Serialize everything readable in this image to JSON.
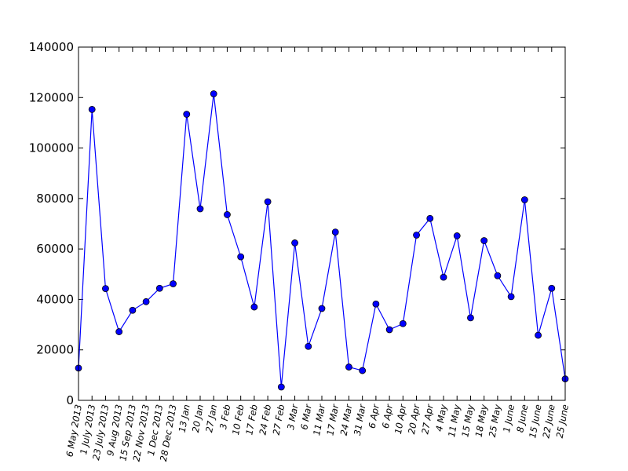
{
  "colors": {
    "series": "#0000ff",
    "axis": "#000000",
    "background": "#ffffff"
  },
  "chart_data": {
    "type": "line",
    "title": "",
    "xlabel": "",
    "ylabel": "",
    "grid": false,
    "legend": false,
    "ylim": [
      0,
      140000
    ],
    "yticks": [
      0,
      20000,
      40000,
      60000,
      80000,
      100000,
      120000,
      140000
    ],
    "categories": [
      "6 May 2013",
      "1 July 2013",
      "23 July 2013",
      "9 Aug 2013",
      "15 Sep 2013",
      "22 Nov 2013",
      "1 Dec 2013",
      "28 Dec 2013",
      "13 Jan",
      "20 Jan",
      "27 Jan",
      "3 Feb",
      "10 Feb",
      "17 Feb",
      "24 Feb",
      "27 Feb",
      "3 Mar",
      "6 Mar",
      "11 Mar",
      "17 Mar",
      "24 Mar",
      "31 Mar",
      "6 Apr",
      "6 Apr",
      "10 Apr",
      "20 Apr",
      "27 Apr",
      "4 May",
      "11 May",
      "15 May",
      "18 May",
      "25 May",
      "1 June",
      "8 June",
      "15 June",
      "22 June",
      "25 June"
    ],
    "series": [
      {
        "values": [
          12800,
          115300,
          44300,
          27200,
          35700,
          39100,
          44400,
          46200,
          113400,
          75900,
          121500,
          73600,
          56900,
          37000,
          78700,
          5300,
          62400,
          21400,
          36400,
          66700,
          13200,
          11800,
          38200,
          28000,
          30400,
          65500,
          72100,
          48800,
          65200,
          32700,
          63300,
          49400,
          41100,
          79500,
          25800,
          44400,
          8500
        ]
      }
    ]
  }
}
